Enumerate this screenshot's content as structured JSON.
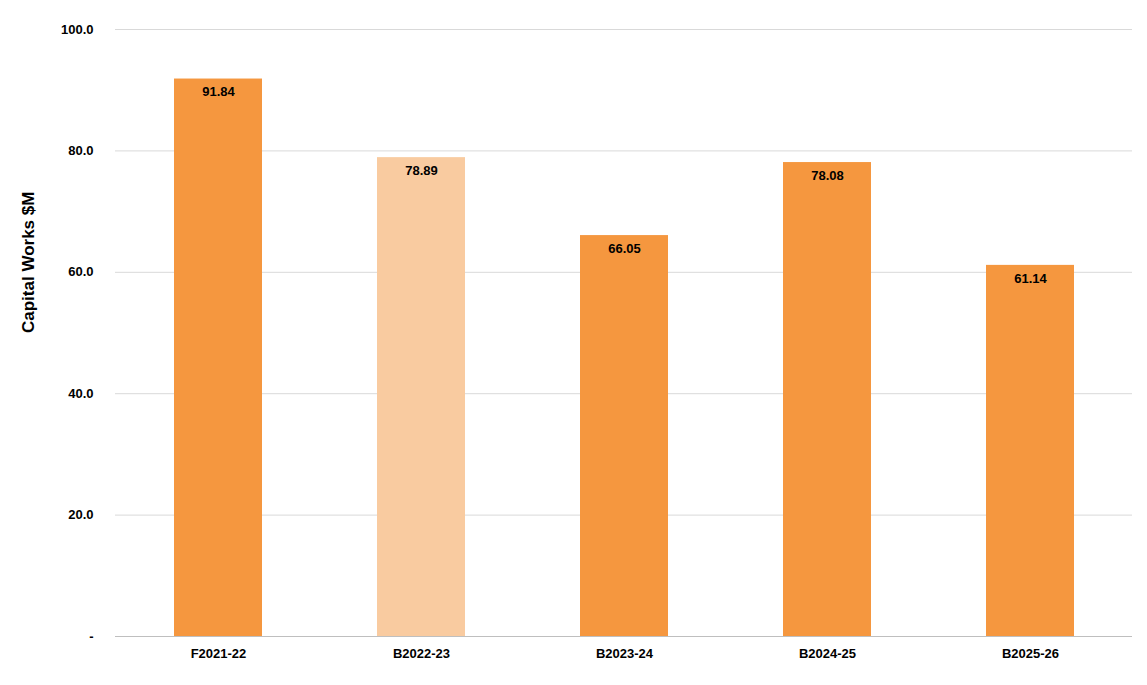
{
  "chart_data": {
    "type": "bar",
    "y_label": "Capital Works $M",
    "categories": [
      "F2021-22",
      "B2022-23",
      "B2023-24",
      "B2024-25",
      "B2025-26"
    ],
    "values": [
      91.84,
      78.89,
      66.05,
      78.08,
      61.14
    ],
    "colors": [
      "#f5973f",
      "#f9cba0",
      "#f5973f",
      "#f5973f",
      "#f5973f"
    ],
    "ylim": [
      0,
      100
    ],
    "yticks": [
      {
        "value": 0,
        "label": "-"
      },
      {
        "value": 20,
        "label": "20.0"
      },
      {
        "value": 40,
        "label": "40.0"
      },
      {
        "value": 60,
        "label": "60.0"
      },
      {
        "value": 80,
        "label": "80.0"
      },
      {
        "value": 100,
        "label": "100.0"
      }
    ],
    "grid": true,
    "data_labels": true
  }
}
